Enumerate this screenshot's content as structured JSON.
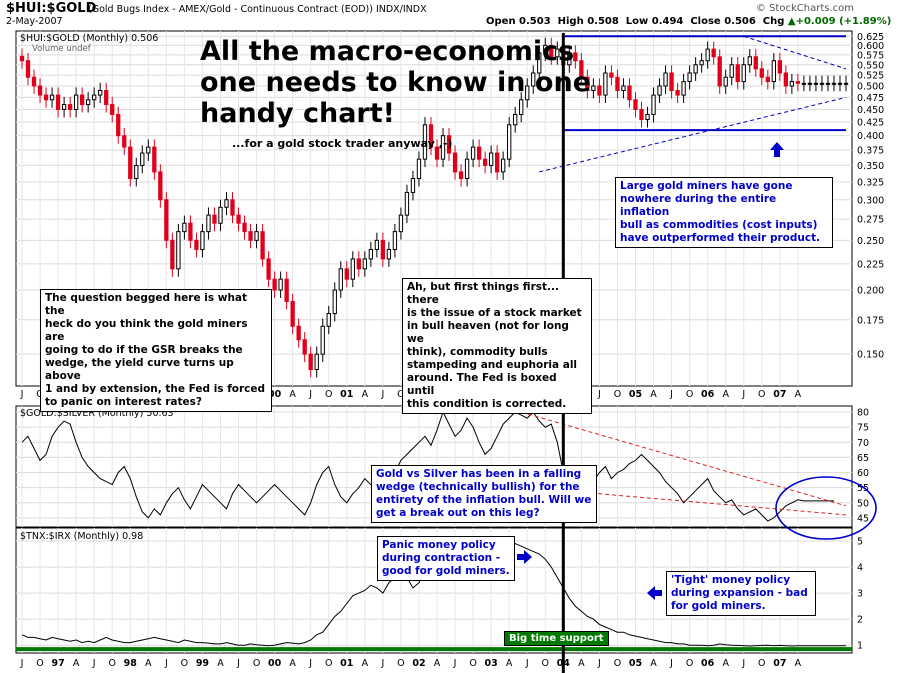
{
  "header": {
    "title": "$HUI:$GOLD",
    "subtitle": "(Gold Bugs Index - AMEX/Gold - Continuous Contract (EOD))  INDX/INDX",
    "date": "2-May-2007",
    "ohlc": "Open 0.503  High 0.508  Low 0.494  Close 0.506  Chg",
    "change": "+0.009 (+1.89%)",
    "change_arrow": "▲",
    "brand": "© StockCharts.com"
  },
  "colors": {
    "up": "#000000",
    "down": "#e0001b",
    "annotation": "#0000c8",
    "support": "#007a00",
    "trend": "#e02020"
  },
  "annotations": {
    "headline": [
      "All the macro-economics",
      "one needs to know in one",
      "handy chart!"
    ],
    "headline_sub": "...for a gold stock trader anyway ,-)",
    "question": [
      "The question begged here is what the",
      "heck do you think the gold miners are",
      "going to do if the GSR breaks the",
      "wedge, the yield curve turns up above",
      "1 and by extension, the Fed is forced",
      "to panic on interest rates?"
    ],
    "stockmarket": [
      "Ah, but first things first... there",
      "is the issue of a stock market",
      "in bull heaven (not for long we",
      "think), commodity bulls",
      "stampeding and euphoria all",
      "around.  The Fed is boxed until",
      "this condition is corrected."
    ],
    "miners": [
      "Large gold miners have gone",
      "nowhere during the entire inflation",
      "bull as commodities (cost inputs)",
      "have outperformed their product."
    ],
    "gsr": [
      "Gold vs Silver has been in a falling",
      "wedge (technically bullish) for the",
      "entirety of the inflation bull. Will we",
      "get a break out on this leg?"
    ],
    "panic": [
      "Panic money policy",
      "during contraction -",
      "good for gold miners."
    ],
    "tight": [
      "'Tight' money policy",
      "during expansion - bad",
      "for gold miners."
    ],
    "support": "Big time support"
  },
  "chart_data": [
    {
      "type": "candlestick",
      "title": "$HUI:$GOLD (Monthly) 0.506",
      "legend": [
        "$HUI:$GOLD (Monthly) 0.506",
        "Volume undef"
      ],
      "scale": "log",
      "ylim": [
        0.13,
        0.64
      ],
      "y_ticks": [
        "0.625",
        "0.600",
        "0.575",
        "0.550",
        "0.525",
        "0.500",
        "0.475",
        "0.450",
        "0.425",
        "0.400",
        "0.375",
        "0.350",
        "0.325",
        "0.300",
        "0.275",
        "0.250",
        "0.225",
        "0.200",
        "0.175",
        "0.150"
      ],
      "x_labels": [
        "J",
        "O",
        "97",
        "A",
        "J",
        "O",
        "98",
        "A",
        "J",
        "O",
        "99",
        "A",
        "J",
        "O",
        "00",
        "A",
        "J",
        "O",
        "01",
        "A",
        "J",
        "O",
        "02",
        "A",
        "J",
        "O",
        "03",
        "A",
        "J",
        "O",
        "04",
        "A",
        "J",
        "O",
        "05",
        "A",
        "J",
        "O",
        "06",
        "A",
        "J",
        "O",
        "07",
        "A"
      ],
      "x_label_values": [
        0,
        3,
        6,
        9,
        12,
        15,
        18,
        21,
        24,
        27,
        30,
        33,
        36,
        39,
        42,
        45,
        48,
        51,
        54,
        57,
        60,
        63,
        66,
        69,
        72,
        75,
        78,
        81,
        84,
        87,
        90,
        93,
        96,
        99,
        102,
        105,
        108,
        111,
        114,
        117,
        120,
        123,
        126,
        129
      ],
      "close": [
        0.56,
        0.52,
        0.5,
        0.48,
        0.47,
        0.48,
        0.45,
        0.46,
        0.45,
        0.48,
        0.46,
        0.47,
        0.48,
        0.49,
        0.46,
        0.44,
        0.4,
        0.38,
        0.33,
        0.35,
        0.37,
        0.38,
        0.34,
        0.3,
        0.25,
        0.22,
        0.26,
        0.27,
        0.25,
        0.24,
        0.26,
        0.28,
        0.27,
        0.29,
        0.3,
        0.28,
        0.27,
        0.26,
        0.25,
        0.26,
        0.23,
        0.21,
        0.2,
        0.21,
        0.19,
        0.17,
        0.16,
        0.15,
        0.14,
        0.15,
        0.17,
        0.18,
        0.2,
        0.22,
        0.21,
        0.23,
        0.22,
        0.23,
        0.24,
        0.25,
        0.23,
        0.24,
        0.26,
        0.28,
        0.31,
        0.33,
        0.36,
        0.42,
        0.38,
        0.36,
        0.4,
        0.37,
        0.34,
        0.33,
        0.36,
        0.38,
        0.36,
        0.35,
        0.37,
        0.34,
        0.36,
        0.42,
        0.44,
        0.47,
        0.5,
        0.53,
        0.58,
        0.6,
        0.57,
        0.59,
        0.55,
        0.58,
        0.56,
        0.52,
        0.49,
        0.5,
        0.48,
        0.53,
        0.52,
        0.49,
        0.5,
        0.47,
        0.45,
        0.43,
        0.44,
        0.48,
        0.5,
        0.53,
        0.49,
        0.48,
        0.51,
        0.53,
        0.55,
        0.56,
        0.59,
        0.57,
        0.5,
        0.52,
        0.55,
        0.51,
        0.55,
        0.57,
        0.54,
        0.52,
        0.51,
        0.56,
        0.53,
        0.5,
        0.51,
        0.506
      ],
      "trendlines": [
        {
          "name": "upper",
          "points": [
            [
              90,
              0.625
            ],
            [
              137,
              0.625
            ]
          ]
        },
        {
          "name": "lower",
          "points": [
            [
              90,
              0.41
            ],
            [
              137,
              0.41
            ]
          ]
        },
        {
          "name": "wedge-top",
          "points": [
            [
              120,
              0.625
            ],
            [
              137,
              0.54
            ]
          ]
        },
        {
          "name": "wedge-bottom",
          "points": [
            [
              86,
              0.34
            ],
            [
              137,
              0.475
            ]
          ]
        }
      ]
    },
    {
      "type": "line",
      "title": "$GOLD:$SILVER (Monthly) 50.63",
      "ylim": [
        42,
        82
      ],
      "y_ticks": [
        80,
        75,
        70,
        65,
        60,
        55,
        50,
        45
      ],
      "values": [
        70,
        72,
        68,
        64,
        66,
        72,
        75,
        77,
        76,
        70,
        65,
        62,
        60,
        58,
        57,
        56,
        60,
        62,
        58,
        52,
        47,
        45,
        48,
        46,
        50,
        53,
        55,
        51,
        48,
        52,
        56,
        54,
        52,
        50,
        48,
        53,
        56,
        54,
        52,
        50,
        52,
        54,
        56,
        54,
        52,
        50,
        48,
        46,
        50,
        56,
        60,
        62,
        56,
        52,
        50,
        53,
        55,
        58,
        56,
        55,
        58,
        62,
        60,
        64,
        66,
        68,
        70,
        72,
        69,
        74,
        80,
        76,
        72,
        74,
        78,
        75,
        70,
        66,
        68,
        72,
        76,
        78,
        80,
        79,
        78,
        80,
        77,
        75,
        76,
        70,
        60,
        58,
        56,
        54,
        55,
        57,
        60,
        62,
        58,
        60,
        61,
        63,
        64,
        66,
        64,
        62,
        60,
        57,
        55,
        53,
        50,
        52,
        54,
        56,
        58,
        54,
        52,
        50,
        51,
        48,
        46,
        47,
        48,
        46,
        44,
        45,
        47,
        49,
        50,
        51,
        50.63,
        50.63,
        50.63,
        50.63,
        50.63,
        50.63
      ],
      "trendlines": [
        {
          "name": "wedge-top",
          "points": [
            [
              83,
              80
            ],
            [
              137,
              49
            ]
          ]
        },
        {
          "name": "wedge-bottom",
          "points": [
            [
              90,
              54
            ],
            [
              137,
              46
            ]
          ]
        }
      ]
    },
    {
      "type": "line",
      "title": "$TNX:$IRX (Monthly) 0.98",
      "ylim": [
        0.7,
        5.5
      ],
      "y_ticks": [
        5,
        4,
        3,
        2,
        1
      ],
      "values": [
        1.4,
        1.3,
        1.3,
        1.25,
        1.2,
        1.3,
        1.25,
        1.2,
        1.15,
        1.2,
        1.1,
        1.15,
        1.1,
        1.2,
        1.3,
        1.2,
        1.15,
        1.1,
        1.1,
        1.15,
        1.2,
        1.25,
        1.3,
        1.25,
        1.2,
        1.15,
        1.1,
        1.2,
        1.15,
        1.1,
        1.1,
        1.08,
        1.05,
        1.05,
        1.1,
        1.05,
        1.0,
        1.0,
        1.05,
        1.02,
        1.0,
        0.98,
        1.0,
        1.05,
        1.1,
        1.08,
        1.05,
        1.1,
        1.2,
        1.4,
        1.5,
        1.8,
        2.1,
        2.3,
        2.6,
        2.9,
        3.0,
        3.1,
        3.3,
        3.2,
        3.0,
        3.4,
        3.6,
        3.8,
        3.6,
        3.2,
        3.4,
        3.9,
        4.2,
        3.8,
        3.6,
        4.0,
        4.3,
        4.0,
        3.8,
        4.1,
        4.5,
        4.8,
        4.6,
        4.3,
        4.5,
        4.7,
        4.9,
        4.8,
        4.7,
        4.6,
        4.5,
        4.3,
        4.0,
        3.6,
        3.2,
        2.8,
        2.5,
        2.3,
        2.1,
        2.0,
        1.8,
        1.7,
        1.6,
        1.5,
        1.5,
        1.4,
        1.35,
        1.3,
        1.25,
        1.2,
        1.15,
        1.1,
        1.1,
        1.05,
        1.05,
        1.0,
        1.0,
        1.0,
        0.98,
        1.0,
        1.05,
        1.02,
        1.0,
        0.99,
        0.98,
        0.97,
        0.98,
        0.99,
        1.0,
        0.98,
        0.99,
        0.98,
        0.97,
        0.98,
        0.98,
        0.98,
        0.98,
        0.98,
        0.98,
        0.98,
        0.98,
        0.98
      ],
      "reference_line": {
        "name": "support",
        "value": 0.85
      }
    }
  ]
}
